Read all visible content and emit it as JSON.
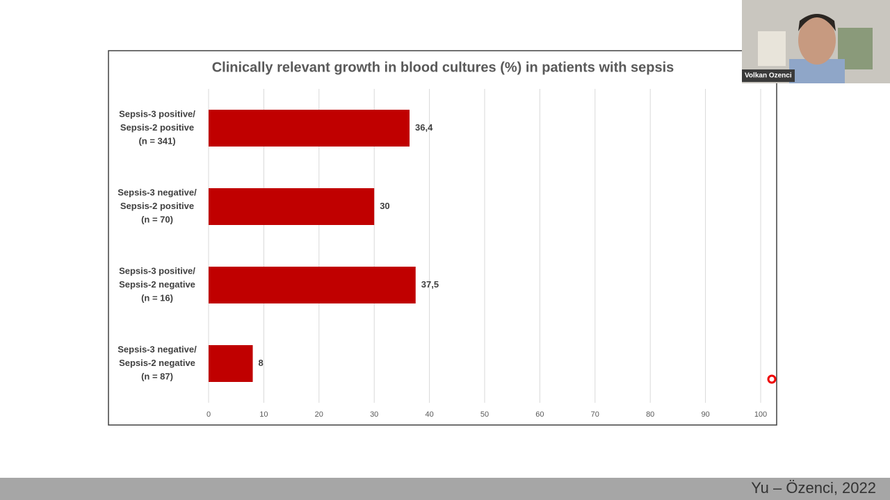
{
  "chart_data": {
    "type": "barh",
    "title": "Clinically relevant growth in blood cultures (%) in patients with sepsis",
    "categories": [
      [
        "Sepsis-3 positive/",
        "Sepsis-2 positive",
        "(n = 341)"
      ],
      [
        "Sepsis-3 negative/",
        "Sepsis-2 positive",
        "(n = 70)"
      ],
      [
        "Sepsis-3 positive/",
        "Sepsis-2 negative",
        "(n = 16)"
      ],
      [
        "Sepsis-3 negative/",
        "Sepsis-2 negative",
        "(n = 87)"
      ]
    ],
    "values": [
      36.4,
      30,
      37.5,
      8
    ],
    "value_labels": [
      "36,4",
      "30",
      "37,5",
      "8"
    ],
    "color": "#c00000",
    "xlim": [
      0,
      100
    ],
    "xticks": [
      0,
      10,
      20,
      30,
      40,
      50,
      60,
      70,
      80,
      90,
      100
    ],
    "grid": true
  },
  "webcam_name": "Volkan Ozenci",
  "footer": "Yu – Özenci, 2022"
}
